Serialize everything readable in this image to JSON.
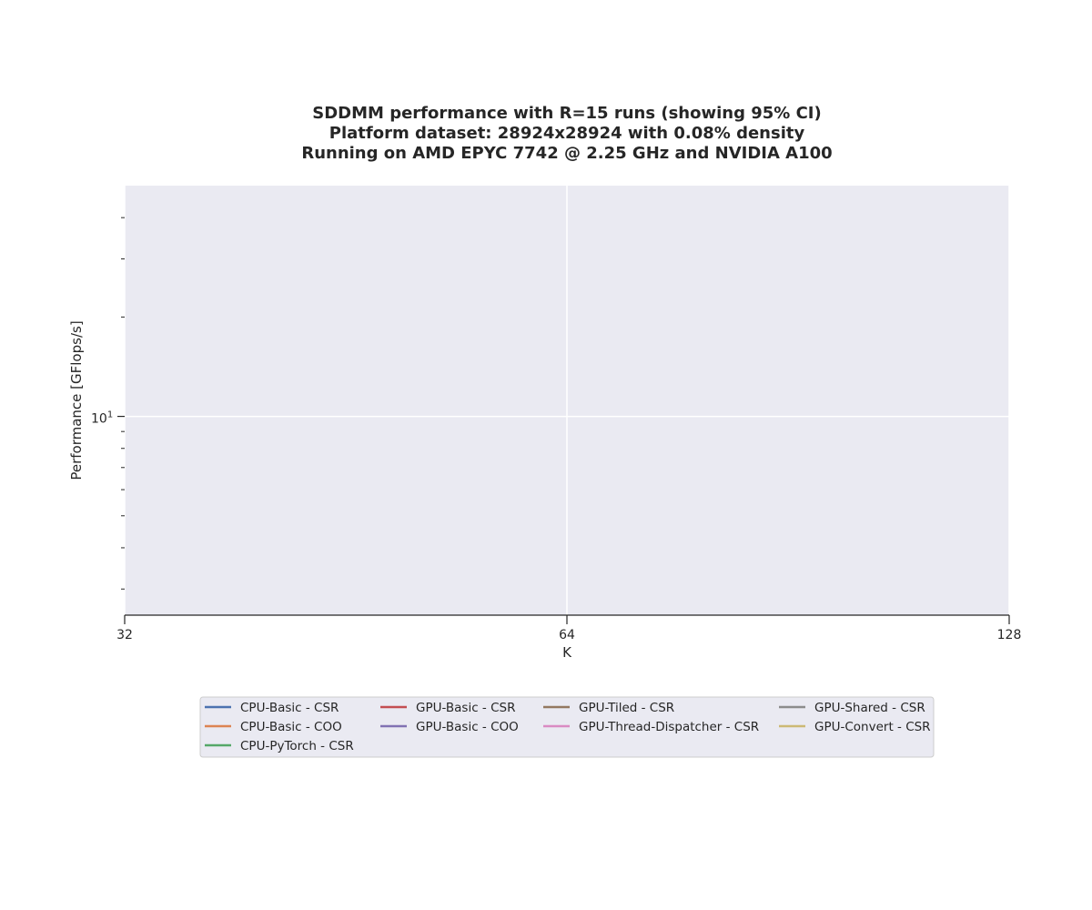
{
  "chart_data": {
    "type": "line",
    "title": [
      "SDDMM performance with R=15 runs (showing 95% CI)",
      "Platform dataset: 28924x28924 with 0.08% density",
      "Running on AMD EPYC 7742 @ 2.25 GHz and NVIDIA A100"
    ],
    "xlabel": "K",
    "ylabel": "Performance [GFlops/s]",
    "x_scale": "log2",
    "y_scale": "log10",
    "x_ticks": [
      32,
      64,
      128
    ],
    "x_tick_labels": [
      "32",
      "64",
      "128"
    ],
    "xlim": [
      32,
      128
    ],
    "y_major_ticks": [
      {
        "value": 10,
        "base": "10",
        "exp": "1"
      }
    ],
    "y_minor_ticks": [
      3,
      4,
      5,
      6,
      7,
      8,
      9,
      20,
      30,
      40
    ],
    "ylim": [
      2.5,
      50
    ],
    "grid": true,
    "legend": {
      "placement": "below-center",
      "columns": 4
    },
    "series": [
      {
        "name": "CPU-Basic - CSR",
        "color": "#4c72b0",
        "x": [],
        "y": []
      },
      {
        "name": "CPU-Basic - COO",
        "color": "#dd8452",
        "x": [],
        "y": []
      },
      {
        "name": "CPU-PyTorch - CSR",
        "color": "#55a868",
        "x": [],
        "y": []
      },
      {
        "name": "GPU-Basic - CSR",
        "color": "#c44e52",
        "x": [],
        "y": []
      },
      {
        "name": "GPU-Basic - COO",
        "color": "#8172b3",
        "x": [],
        "y": []
      },
      {
        "name": "GPU-Tiled - CSR",
        "color": "#937860",
        "x": [],
        "y": []
      },
      {
        "name": "GPU-Thread-Dispatcher - CSR",
        "color": "#da8bc3",
        "x": [],
        "y": []
      },
      {
        "name": "GPU-Shared - CSR",
        "color": "#8c8c8c",
        "x": [],
        "y": []
      },
      {
        "name": "GPU-Convert - CSR",
        "color": "#ccb974",
        "x": [],
        "y": []
      }
    ]
  }
}
